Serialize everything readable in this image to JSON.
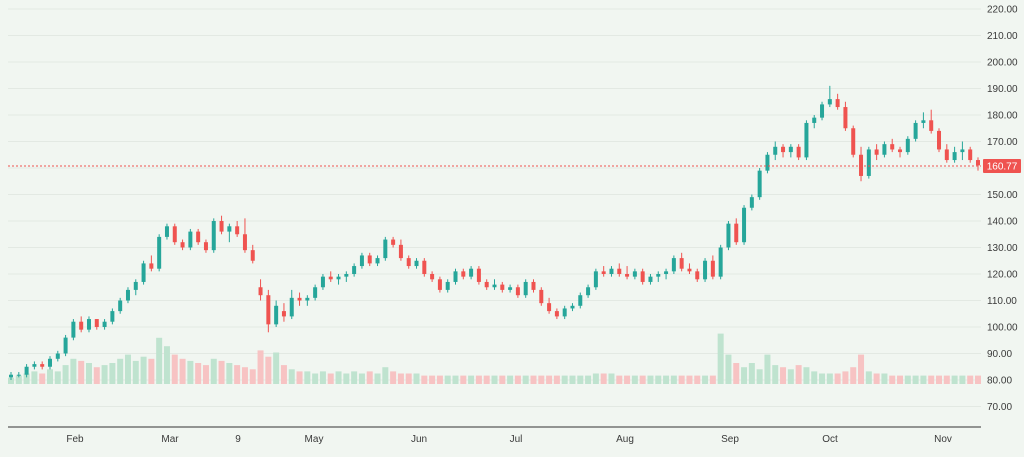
{
  "chart_data": {
    "type": "candlestick",
    "y_axis_side": "right",
    "ylim": [
      65,
      220
    ],
    "y_ticks": [
      "70.00",
      "80.00",
      "90.00",
      "100.00",
      "110.00",
      "120.00",
      "130.00",
      "140.00",
      "150.00",
      "160.00",
      "170.00",
      "180.00",
      "190.00",
      "200.00",
      "210.00",
      "220.00"
    ],
    "x_ticks": [
      "Feb",
      "Mar",
      "9",
      "May",
      "Jun",
      "Jul",
      "Aug",
      "Sep",
      "Oct",
      "Nov"
    ],
    "last_price": "160.77",
    "last_price_value": 160.77,
    "colors": {
      "up": "#26a69a",
      "down": "#ef5350",
      "up_volume": "#bfe3cf",
      "down_volume": "#f7c3c3",
      "grid": "#e3e9e3",
      "axis": "#333333"
    },
    "candles": [
      [
        81,
        83,
        80,
        82
      ],
      [
        82,
        83,
        81,
        82
      ],
      [
        82,
        86,
        81,
        85
      ],
      [
        85,
        87,
        84,
        86
      ],
      [
        86,
        87,
        84,
        85
      ],
      [
        85,
        89,
        84,
        88
      ],
      [
        88,
        91,
        87,
        90
      ],
      [
        90,
        97,
        89,
        96
      ],
      [
        96,
        103,
        95,
        102
      ],
      [
        102,
        104,
        98,
        99
      ],
      [
        99,
        104,
        98,
        103
      ],
      [
        103,
        103,
        99,
        100
      ],
      [
        100,
        103,
        99,
        102
      ],
      [
        102,
        107,
        101,
        106
      ],
      [
        106,
        111,
        105,
        110
      ],
      [
        110,
        115,
        109,
        114
      ],
      [
        114,
        118,
        112,
        117
      ],
      [
        117,
        125,
        116,
        124
      ],
      [
        124,
        127,
        121,
        122
      ],
      [
        122,
        135,
        121,
        134
      ],
      [
        134,
        139,
        133,
        138
      ],
      [
        138,
        139,
        131,
        132
      ],
      [
        132,
        133,
        129,
        130
      ],
      [
        130,
        137,
        129,
        136
      ],
      [
        136,
        137,
        131,
        132
      ],
      [
        132,
        133,
        128,
        129
      ],
      [
        129,
        141,
        128,
        140
      ],
      [
        140,
        142,
        135,
        136
      ],
      [
        136,
        139,
        132,
        138
      ],
      [
        138,
        140,
        134,
        135
      ],
      [
        135,
        141,
        128,
        129
      ],
      [
        129,
        131,
        124,
        125
      ],
      [
        115,
        118,
        110,
        112
      ],
      [
        112,
        114,
        98,
        101
      ],
      [
        101,
        110,
        100,
        108
      ],
      [
        106,
        109,
        102,
        104
      ],
      [
        104,
        114,
        103,
        111
      ],
      [
        111,
        113,
        108,
        110
      ],
      [
        110,
        112,
        108,
        111
      ],
      [
        111,
        116,
        110,
        115
      ],
      [
        115,
        120,
        114,
        119
      ],
      [
        119,
        121,
        117,
        118
      ],
      [
        118,
        120,
        116,
        119
      ],
      [
        119,
        121,
        117,
        120
      ],
      [
        120,
        124,
        119,
        123
      ],
      [
        123,
        128,
        122,
        127
      ],
      [
        127,
        128,
        123,
        124
      ],
      [
        124,
        127,
        123,
        126
      ],
      [
        126,
        134,
        125,
        133
      ],
      [
        133,
        134,
        130,
        131
      ],
      [
        131,
        133,
        125,
        126
      ],
      [
        126,
        127,
        122,
        123
      ],
      [
        123,
        126,
        122,
        125
      ],
      [
        125,
        126,
        119,
        120
      ],
      [
        120,
        121,
        117,
        118
      ],
      [
        118,
        119,
        113,
        114
      ],
      [
        114,
        118,
        113,
        117
      ],
      [
        117,
        122,
        116,
        121
      ],
      [
        121,
        122,
        118,
        119
      ],
      [
        119,
        123,
        118,
        122
      ],
      [
        122,
        123,
        116,
        117
      ],
      [
        117,
        118,
        114,
        115
      ],
      [
        115,
        118,
        114,
        116
      ],
      [
        116,
        117,
        113,
        114
      ],
      [
        114,
        116,
        113,
        115
      ],
      [
        115,
        116,
        111,
        112
      ],
      [
        112,
        118,
        111,
        117
      ],
      [
        117,
        118,
        113,
        114
      ],
      [
        114,
        115,
        108,
        109
      ],
      [
        109,
        111,
        105,
        106
      ],
      [
        106,
        107,
        103,
        104
      ],
      [
        104,
        108,
        103,
        107
      ],
      [
        107,
        109,
        106,
        108
      ],
      [
        108,
        113,
        107,
        112
      ],
      [
        112,
        116,
        111,
        115
      ],
      [
        115,
        122,
        114,
        121
      ],
      [
        121,
        123,
        119,
        120
      ],
      [
        120,
        123,
        119,
        122
      ],
      [
        122,
        124,
        119,
        120
      ],
      [
        120,
        123,
        118,
        119
      ],
      [
        119,
        122,
        118,
        121
      ],
      [
        121,
        122,
        116,
        117
      ],
      [
        117,
        120,
        116,
        119
      ],
      [
        119,
        121,
        117,
        120
      ],
      [
        120,
        122,
        118,
        121
      ],
      [
        121,
        127,
        120,
        126
      ],
      [
        126,
        128,
        121,
        122
      ],
      [
        122,
        124,
        120,
        121
      ],
      [
        121,
        122,
        117,
        118
      ],
      [
        118,
        126,
        117,
        125
      ],
      [
        125,
        127,
        118,
        119
      ],
      [
        119,
        131,
        118,
        130
      ],
      [
        130,
        140,
        129,
        139
      ],
      [
        139,
        141,
        131,
        132
      ],
      [
        132,
        146,
        131,
        145
      ],
      [
        145,
        150,
        144,
        149
      ],
      [
        149,
        160,
        148,
        159
      ],
      [
        159,
        166,
        158,
        165
      ],
      [
        165,
        170,
        163,
        168
      ],
      [
        168,
        169,
        164,
        166
      ],
      [
        166,
        169,
        164,
        168
      ],
      [
        168,
        169,
        163,
        164
      ],
      [
        164,
        178,
        163,
        177
      ],
      [
        177,
        180,
        175,
        179
      ],
      [
        179,
        185,
        178,
        184
      ],
      [
        184,
        191,
        183,
        186
      ],
      [
        186,
        188,
        182,
        183
      ],
      [
        183,
        185,
        174,
        175
      ],
      [
        175,
        176,
        164,
        165
      ],
      [
        165,
        168,
        155,
        157
      ],
      [
        157,
        168,
        156,
        167
      ],
      [
        167,
        169,
        163,
        165
      ],
      [
        165,
        170,
        164,
        169
      ],
      [
        169,
        171,
        166,
        167
      ],
      [
        167,
        168,
        164,
        166
      ],
      [
        166,
        172,
        165,
        171
      ],
      [
        171,
        178,
        170,
        177
      ],
      [
        177,
        181,
        175,
        178
      ],
      [
        178,
        182,
        173,
        174
      ],
      [
        174,
        175,
        166,
        167
      ],
      [
        167,
        169,
        162,
        163
      ],
      [
        163,
        168,
        162,
        166
      ],
      [
        166,
        170,
        163,
        167
      ],
      [
        167,
        168,
        162,
        163
      ],
      [
        163,
        164,
        159,
        161
      ]
    ],
    "volumes": [
      3,
      4,
      5,
      6,
      5,
      7,
      6,
      9,
      12,
      11,
      10,
      8,
      9,
      10,
      12,
      14,
      11,
      13,
      12,
      22,
      18,
      14,
      12,
      11,
      10,
      9,
      12,
      11,
      10,
      9,
      8,
      7,
      16,
      13,
      15,
      9,
      7,
      6,
      6,
      5,
      6,
      5,
      6,
      5,
      6,
      5,
      6,
      5,
      8,
      6,
      5,
      5,
      5,
      4,
      4,
      4,
      4,
      4,
      4,
      4,
      4,
      4,
      4,
      4,
      4,
      4,
      4,
      4,
      4,
      4,
      4,
      4,
      4,
      4,
      4,
      5,
      5,
      5,
      4,
      4,
      4,
      4,
      4,
      4,
      4,
      4,
      4,
      4,
      4,
      4,
      4,
      24,
      14,
      10,
      8,
      10,
      7,
      14,
      9,
      8,
      7,
      9,
      8,
      6,
      5,
      5,
      5,
      6,
      8,
      14,
      6,
      5,
      5,
      4,
      4,
      4,
      4,
      4,
      4,
      4,
      4,
      4,
      4,
      4,
      4
    ]
  }
}
